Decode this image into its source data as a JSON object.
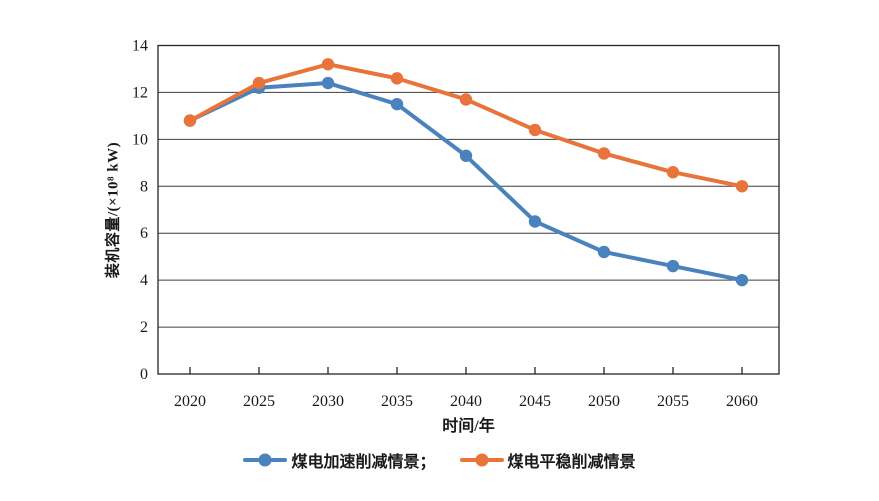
{
  "chart_data": {
    "type": "line",
    "title": "",
    "xlabel": "时间/年",
    "ylabel": "装机容量/(×10⁸ kW)",
    "categories": [
      2020,
      2025,
      2030,
      2035,
      2040,
      2045,
      2050,
      2055,
      2060
    ],
    "ylim": [
      0,
      14
    ],
    "ytick_step": 2,
    "grid": "horizontal",
    "legend_position": "bottom",
    "series": [
      {
        "name": "煤电加速削减情景",
        "legend_label": "煤电加速削减情景；",
        "color": "#4A82BE",
        "values": [
          10.8,
          12.2,
          12.4,
          11.5,
          9.3,
          6.5,
          5.2,
          4.6,
          4.0
        ]
      },
      {
        "name": "煤电平稳削减情景",
        "legend_label": "煤电平稳削减情景",
        "color": "#E8743B",
        "values": [
          10.8,
          12.4,
          13.2,
          12.6,
          11.7,
          10.4,
          9.4,
          8.6,
          8.0
        ]
      }
    ],
    "colors": {
      "gridline": "#3f3f3f",
      "axis_box": "#262626",
      "tick_text": "#1a1a1a"
    }
  }
}
